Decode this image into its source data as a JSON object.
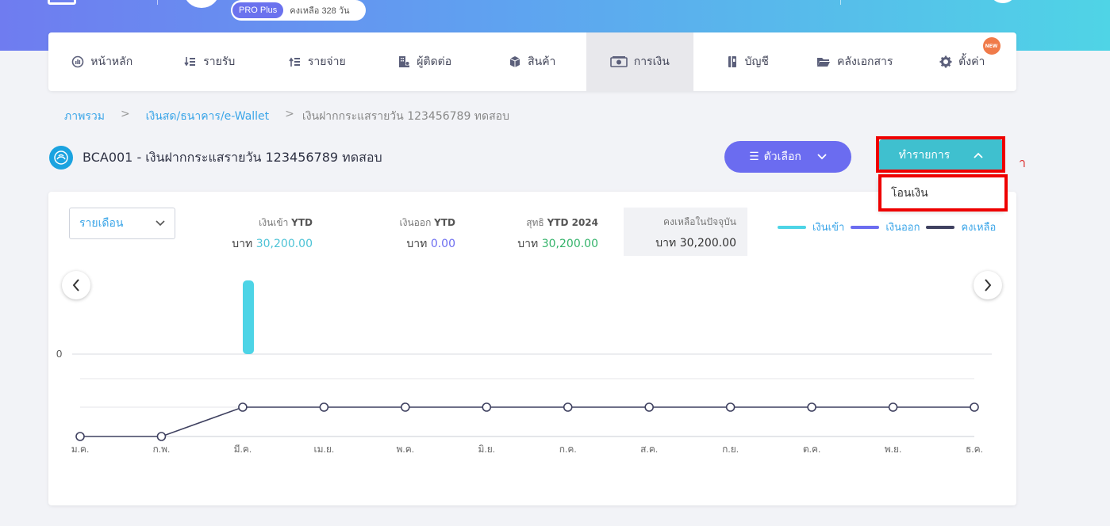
{
  "topbar": {
    "plan_badge": "PRO Plus",
    "plan_days": "คงเหลือ 328 วัน"
  },
  "nav": {
    "items": [
      {
        "label": "หน้าหลัก",
        "icon": "dashboard-icon"
      },
      {
        "label": "รายรับ",
        "icon": "income-icon"
      },
      {
        "label": "รายจ่าย",
        "icon": "expense-icon"
      },
      {
        "label": "ผู้ติดต่อ",
        "icon": "contacts-icon"
      },
      {
        "label": "สินค้า",
        "icon": "box-icon"
      },
      {
        "label": "การเงิน",
        "icon": "money-icon"
      },
      {
        "label": "บัญชี",
        "icon": "book-icon"
      },
      {
        "label": "คลังเอกสาร",
        "icon": "folder-icon"
      },
      {
        "label": "ตั้งค่า",
        "icon": "gear-icon"
      }
    ],
    "active": "การเงิน",
    "new_badge": "NEW"
  },
  "breadcrumb": {
    "home": "ภาพรวม",
    "section": "เงินสด/ธนาคาร/e-Wallet",
    "current": "เงินฝากกระแสรายวัน 123456789 ทดสอบ",
    "sep": ">"
  },
  "account": {
    "title": "BCA001 - เงินฝากกระแสรายวัน 123456789 ทดสอบ"
  },
  "actions": {
    "options_label": "ตัวเลือก",
    "transaction_label": "ทำรายการ",
    "dropdown_item": "โอนเงิน",
    "annotation_mark": "า"
  },
  "filter": {
    "period": "รายเดือน"
  },
  "stats": {
    "income": {
      "label": "เงินเข้า",
      "suffix": "YTD",
      "currency": "บาท",
      "value": "30,200.00"
    },
    "outgo": {
      "label": "เงินออก",
      "suffix": "YTD",
      "currency": "บาท",
      "value": "0.00"
    },
    "net": {
      "label": "สุทธิ",
      "suffix": "YTD 2024",
      "currency": "บาท",
      "value": "30,200.00"
    },
    "balance": {
      "label": "คงเหลือในปัจจุบัน",
      "currency": "บาท",
      "value": "30,200.00"
    }
  },
  "legend": {
    "income": "เงินเข้า",
    "outgo": "เงินออก",
    "balance": "คงเหลือ"
  },
  "colors": {
    "income": "#4dd4e6",
    "outgo": "#6b6cf0",
    "balance": "#3f4160",
    "accent": "#3aa5e8"
  },
  "chart_data": {
    "type": "bar+line",
    "categories": [
      "ม.ค.",
      "ก.พ.",
      "มี.ค.",
      "เม.ย.",
      "พ.ค.",
      "มิ.ย.",
      "ก.ค.",
      "ส.ค.",
      "ก.ย.",
      "ต.ค.",
      "พ.ย.",
      "ธ.ค."
    ],
    "series": [
      {
        "name": "เงินเข้า",
        "kind": "bar",
        "values": [
          0,
          0,
          30200,
          0,
          0,
          0,
          0,
          0,
          0,
          0,
          0,
          0
        ]
      },
      {
        "name": "เงินออก",
        "kind": "bar",
        "values": [
          0,
          0,
          0,
          0,
          0,
          0,
          0,
          0,
          0,
          0,
          0,
          0
        ]
      },
      {
        "name": "คงเหลือ",
        "kind": "line",
        "values": [
          0,
          0,
          30200,
          30200,
          30200,
          30200,
          30200,
          30200,
          30200,
          30200,
          30200,
          30200
        ]
      }
    ],
    "y_tick_label": "0",
    "bar_max": 30200,
    "line_max": 30200
  }
}
